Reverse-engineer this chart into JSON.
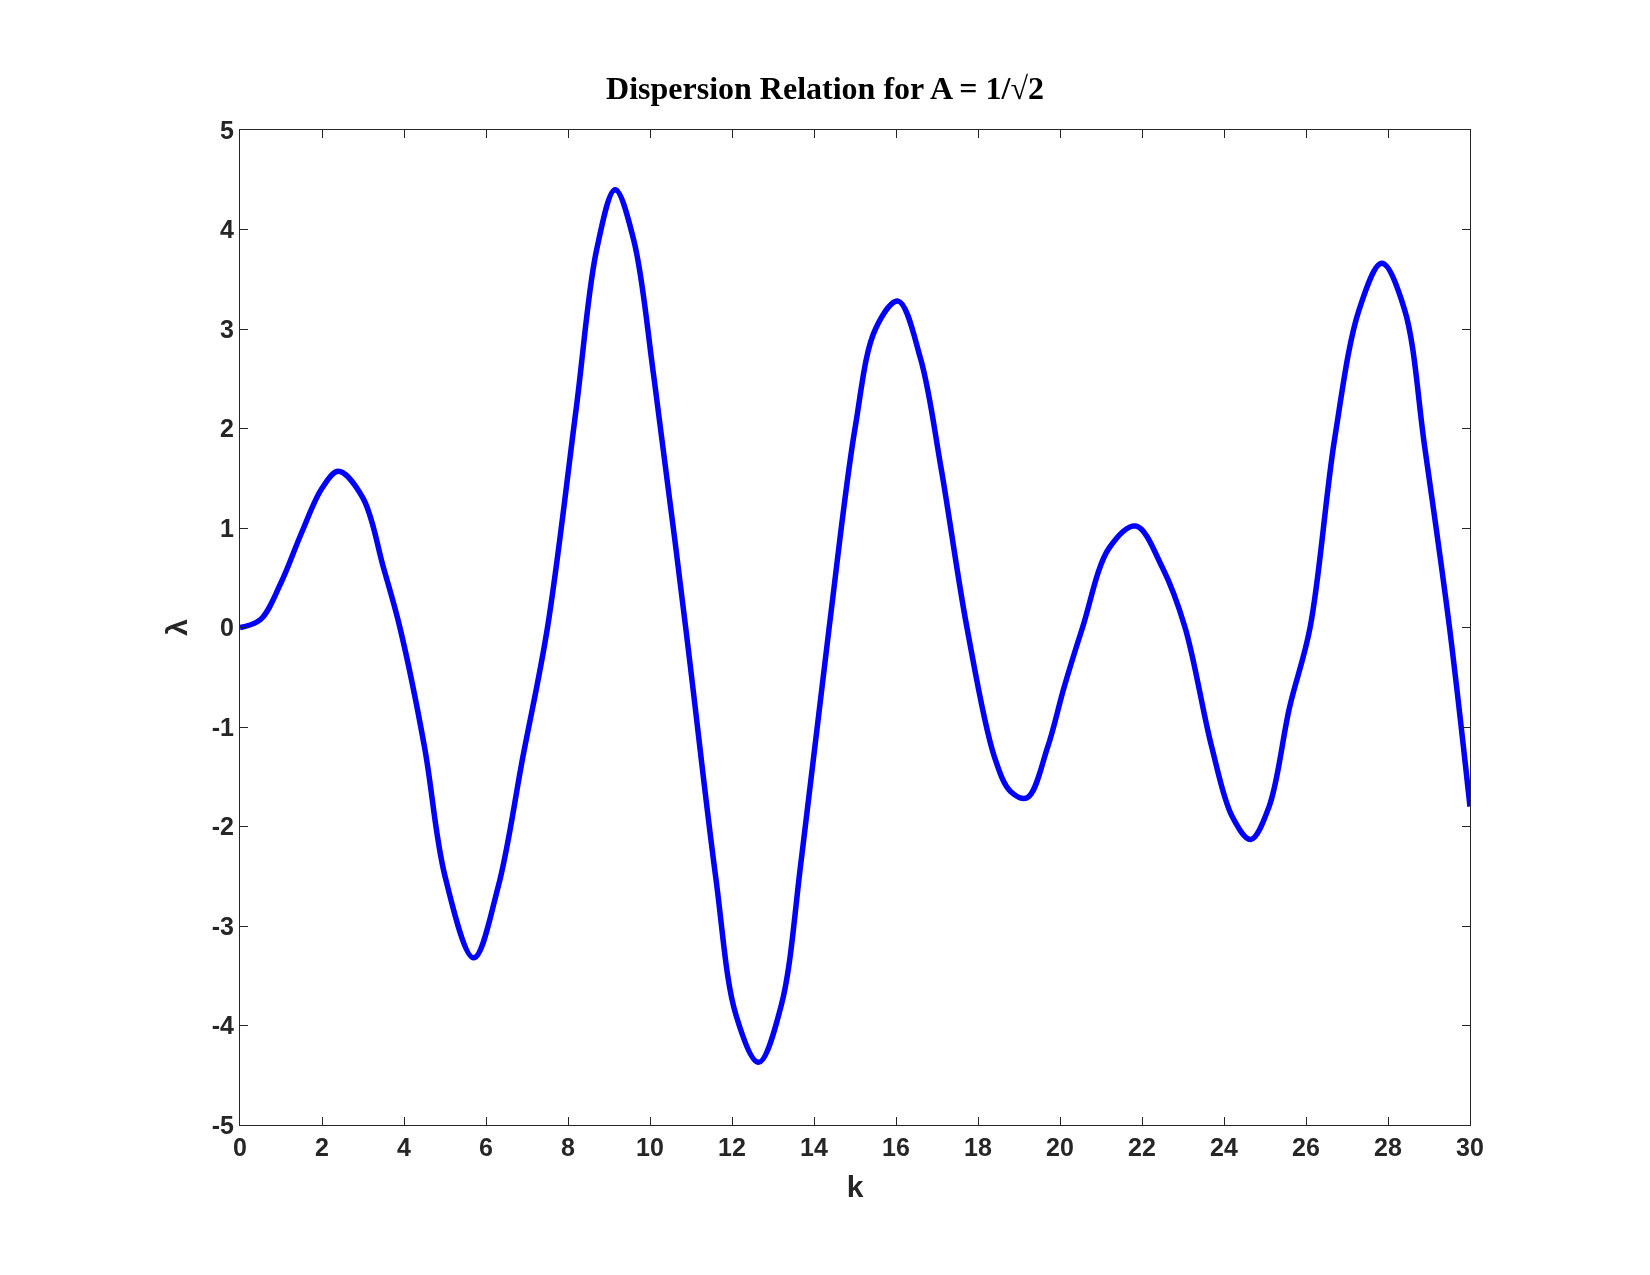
{
  "chart_data": {
    "type": "line",
    "title": "Dispersion Relation for A = 1/√2",
    "xlabel": "k",
    "ylabel": "λ",
    "xlim": [
      0,
      30
    ],
    "xticks": [
      0,
      2,
      4,
      6,
      8,
      10,
      12,
      14,
      16,
      18,
      20,
      22,
      24,
      26,
      28,
      30
    ],
    "ylim": [
      -5,
      5
    ],
    "yticks": [
      -5,
      -4,
      -3,
      -2,
      -1,
      0,
      1,
      2,
      3,
      4,
      5
    ],
    "marker": "none",
    "line_style": "solid",
    "series": [
      {
        "color": "#0000ff",
        "x": [
          0,
          0.5,
          1,
          1.5,
          2,
          2.4,
          3,
          3.5,
          3.9,
          4.5,
          5,
          5.7,
          6.3,
          6.9,
          7.5,
          8.2,
          8.7,
          9.15,
          9.6,
          10.1,
          10.87,
          11.6,
          12.1,
          12.65,
          13.2,
          13.7,
          14.37,
          15,
          15.5,
          16.05,
          16.6,
          17.1,
          17.73,
          18.4,
          18.8,
          19.2,
          19.7,
          20.1,
          20.55,
          21.2,
          21.85,
          22.5,
          23.05,
          23.7,
          24.2,
          24.65,
          25.1,
          25.6,
          26.1,
          26.7,
          27.3,
          27.85,
          28.4,
          28.9,
          29.5,
          30
        ],
        "values": [
          0,
          0.08,
          0.45,
          0.95,
          1.4,
          1.57,
          1.3,
          0.6,
          0,
          -1.2,
          -2.5,
          -3.32,
          -2.6,
          -1.3,
          0,
          2.2,
          3.8,
          4.4,
          3.9,
          2.5,
          0,
          -2.5,
          -3.9,
          -4.37,
          -3.8,
          -2.3,
          0,
          2.0,
          3.0,
          3.28,
          2.7,
          1.6,
          0,
          -1.3,
          -1.65,
          -1.71,
          -1.2,
          -0.6,
          0,
          0.8,
          1.02,
          0.6,
          0,
          -1.2,
          -1.9,
          -2.13,
          -1.8,
          -0.8,
          0,
          1.9,
          3.2,
          3.66,
          3.2,
          1.8,
          0,
          -1.8
        ]
      }
    ]
  }
}
